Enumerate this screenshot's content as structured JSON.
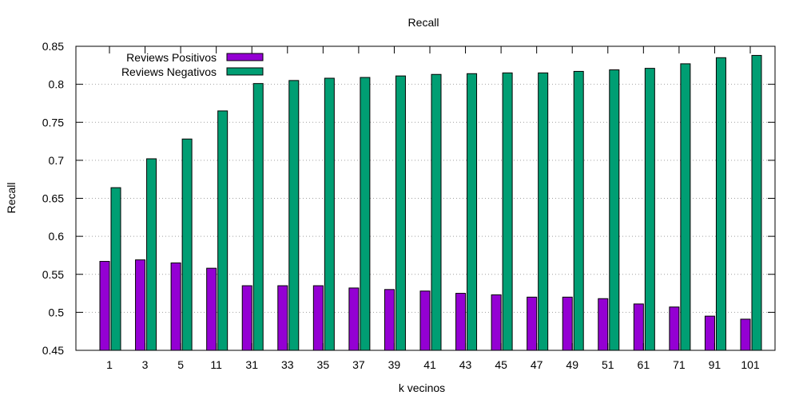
{
  "chart_data": {
    "type": "bar",
    "title": "Recall",
    "xlabel": "k vecinos",
    "ylabel": "Recall",
    "ylim": [
      0.45,
      0.85
    ],
    "yticks": [
      "0.45",
      "0.5",
      "0.55",
      "0.6",
      "0.65",
      "0.7",
      "0.75",
      "0.8",
      "0.85"
    ],
    "grid": "horizontal dotted",
    "legend_position": "top-left",
    "categories": [
      "1",
      "3",
      "5",
      "11",
      "31",
      "33",
      "35",
      "37",
      "39",
      "41",
      "43",
      "45",
      "47",
      "49",
      "51",
      "61",
      "71",
      "91",
      "101"
    ],
    "series": [
      {
        "name": "Reviews Positivos",
        "color": "#9400d3",
        "values": [
          0.567,
          0.569,
          0.565,
          0.558,
          0.535,
          0.535,
          0.535,
          0.532,
          0.53,
          0.528,
          0.525,
          0.523,
          0.52,
          0.52,
          0.518,
          0.511,
          0.507,
          0.495,
          0.491
        ]
      },
      {
        "name": "Reviews Negativos",
        "color": "#009e73",
        "values": [
          0.664,
          0.702,
          0.728,
          0.765,
          0.801,
          0.805,
          0.808,
          0.809,
          0.811,
          0.813,
          0.814,
          0.815,
          0.815,
          0.817,
          0.819,
          0.821,
          0.827,
          0.835,
          0.838
        ]
      }
    ]
  }
}
